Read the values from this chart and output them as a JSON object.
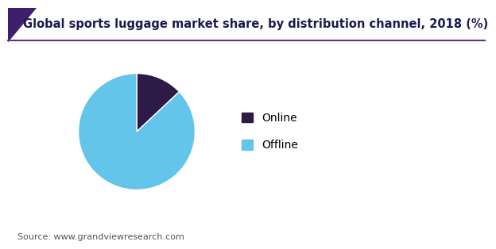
{
  "title": "Global sports luggage market share, by distribution channel, 2018 (%)",
  "labels": [
    "Online",
    "Offline"
  ],
  "values": [
    13.0,
    87.0
  ],
  "colors": [
    "#2e1a47",
    "#63c5ea"
  ],
  "legend_labels": [
    "Online",
    "Offline"
  ],
  "source_text": "Source: www.grandviewresearch.com",
  "title_fontsize": 10.5,
  "legend_fontsize": 10,
  "source_fontsize": 8,
  "startangle": 90,
  "background_color": "#ffffff",
  "header_line_color": "#6b2d8b",
  "title_color": "#1a1a4e"
}
